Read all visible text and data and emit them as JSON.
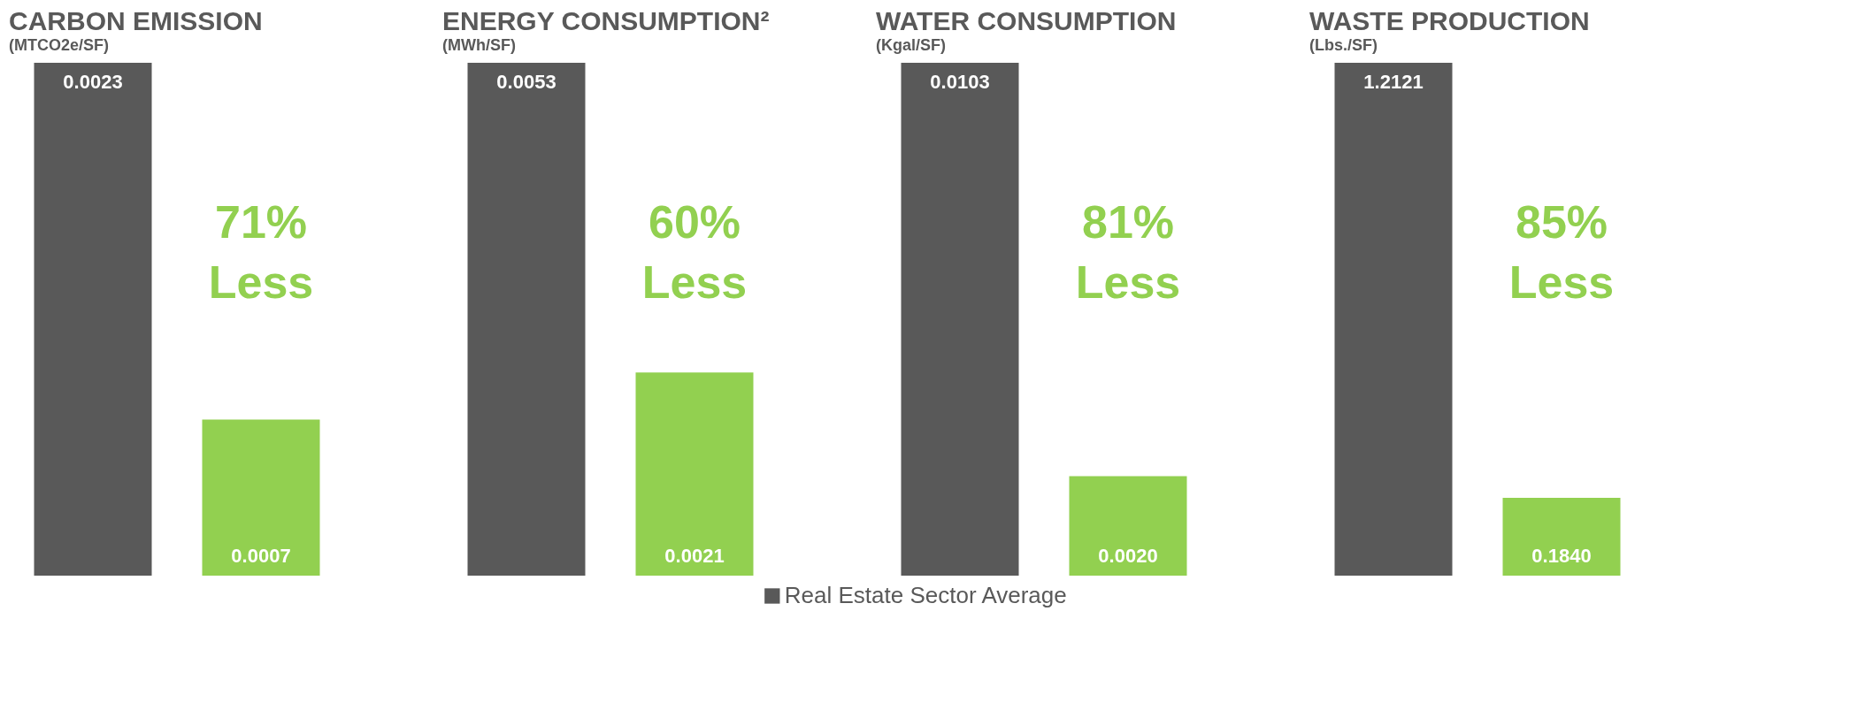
{
  "chart_data": [
    {
      "type": "bar",
      "title": "CARBON EMISSION",
      "subtitle": "(MTCO2e/SF)",
      "categories": [
        null
      ],
      "data_labels": true,
      "legend": "bottom",
      "annotations": [
        "71% Less"
      ],
      "series": [
        {
          "name": "Real Estate Sector Average",
          "color": "#595959",
          "values": [
            0.0023
          ]
        },
        {
          "color": "#92d050",
          "values": [
            0.0007
          ],
          "value_labels": [
            "0.0007"
          ]
        }
      ]
    },
    {
      "type": "bar",
      "title": "ENERGY CONSUMPTION²",
      "subtitle": "(MWh/SF)",
      "categories": [
        null
      ],
      "data_labels": true,
      "legend": "bottom",
      "annotations": [
        "60% Less"
      ],
      "series": [
        {
          "name": "Real Estate Sector Average",
          "color": "#595959",
          "values": [
            0.0053
          ]
        },
        {
          "color": "#92d050",
          "values": [
            0.0021
          ],
          "value_labels": [
            "0.0021"
          ]
        }
      ]
    },
    {
      "type": "bar",
      "title": "WATER CONSUMPTION",
      "subtitle": "(Kgal/SF)",
      "categories": [
        null
      ],
      "data_labels": true,
      "legend": "bottom",
      "annotations": [
        "81% Less"
      ],
      "series": [
        {
          "name": "Real Estate Sector Average",
          "color": "#595959",
          "values": [
            0.0103
          ]
        },
        {
          "color": "#92d050",
          "values": [
            0.002
          ],
          "value_labels": [
            "0.0020"
          ]
        }
      ]
    },
    {
      "type": "bar",
      "title": "WASTE PRODUCTION",
      "subtitle": "(Lbs./SF)",
      "categories": [
        null
      ],
      "data_labels": true,
      "legend": "bottom",
      "annotations": [
        "85% Less"
      ],
      "series": [
        {
          "name": "Real Estate Sector Average",
          "color": "#595959",
          "values": [
            1.2121
          ]
        },
        {
          "color": "#92d050",
          "values": [
            0.184
          ],
          "value_labels": [
            "0.1840"
          ]
        }
      ]
    }
  ]
}
